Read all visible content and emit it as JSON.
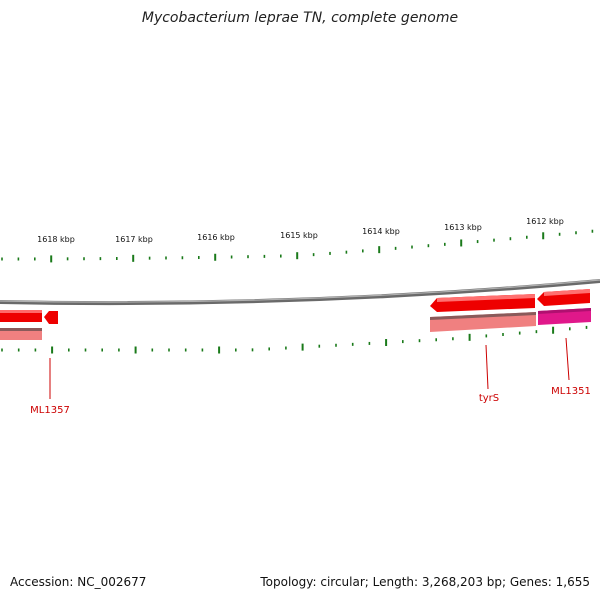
{
  "title": "Mycobacterium leprae TN, complete genome",
  "footer": {
    "accession": "Accession: NC_002677",
    "summary": "Topology: circular; Length: 3,268,203 bp; Genes: 1,655"
  },
  "colors": {
    "backbone": "#8a8a8a",
    "tick": "#1a7a1a",
    "gene": "#ee0000",
    "gene_light": "#f08080",
    "gene_pink": "#e0188a",
    "label": "#cc0000"
  },
  "ruler": {
    "labels": [
      "1618 kbp",
      "1617 kbp",
      "1616 kbp",
      "1615 kbp",
      "1614 kbp",
      "1613 kbp",
      "1612 kbp"
    ]
  },
  "genes": [
    {
      "label": "ML1357"
    },
    {
      "label": "tyrS"
    },
    {
      "label": "ML1351"
    }
  ]
}
